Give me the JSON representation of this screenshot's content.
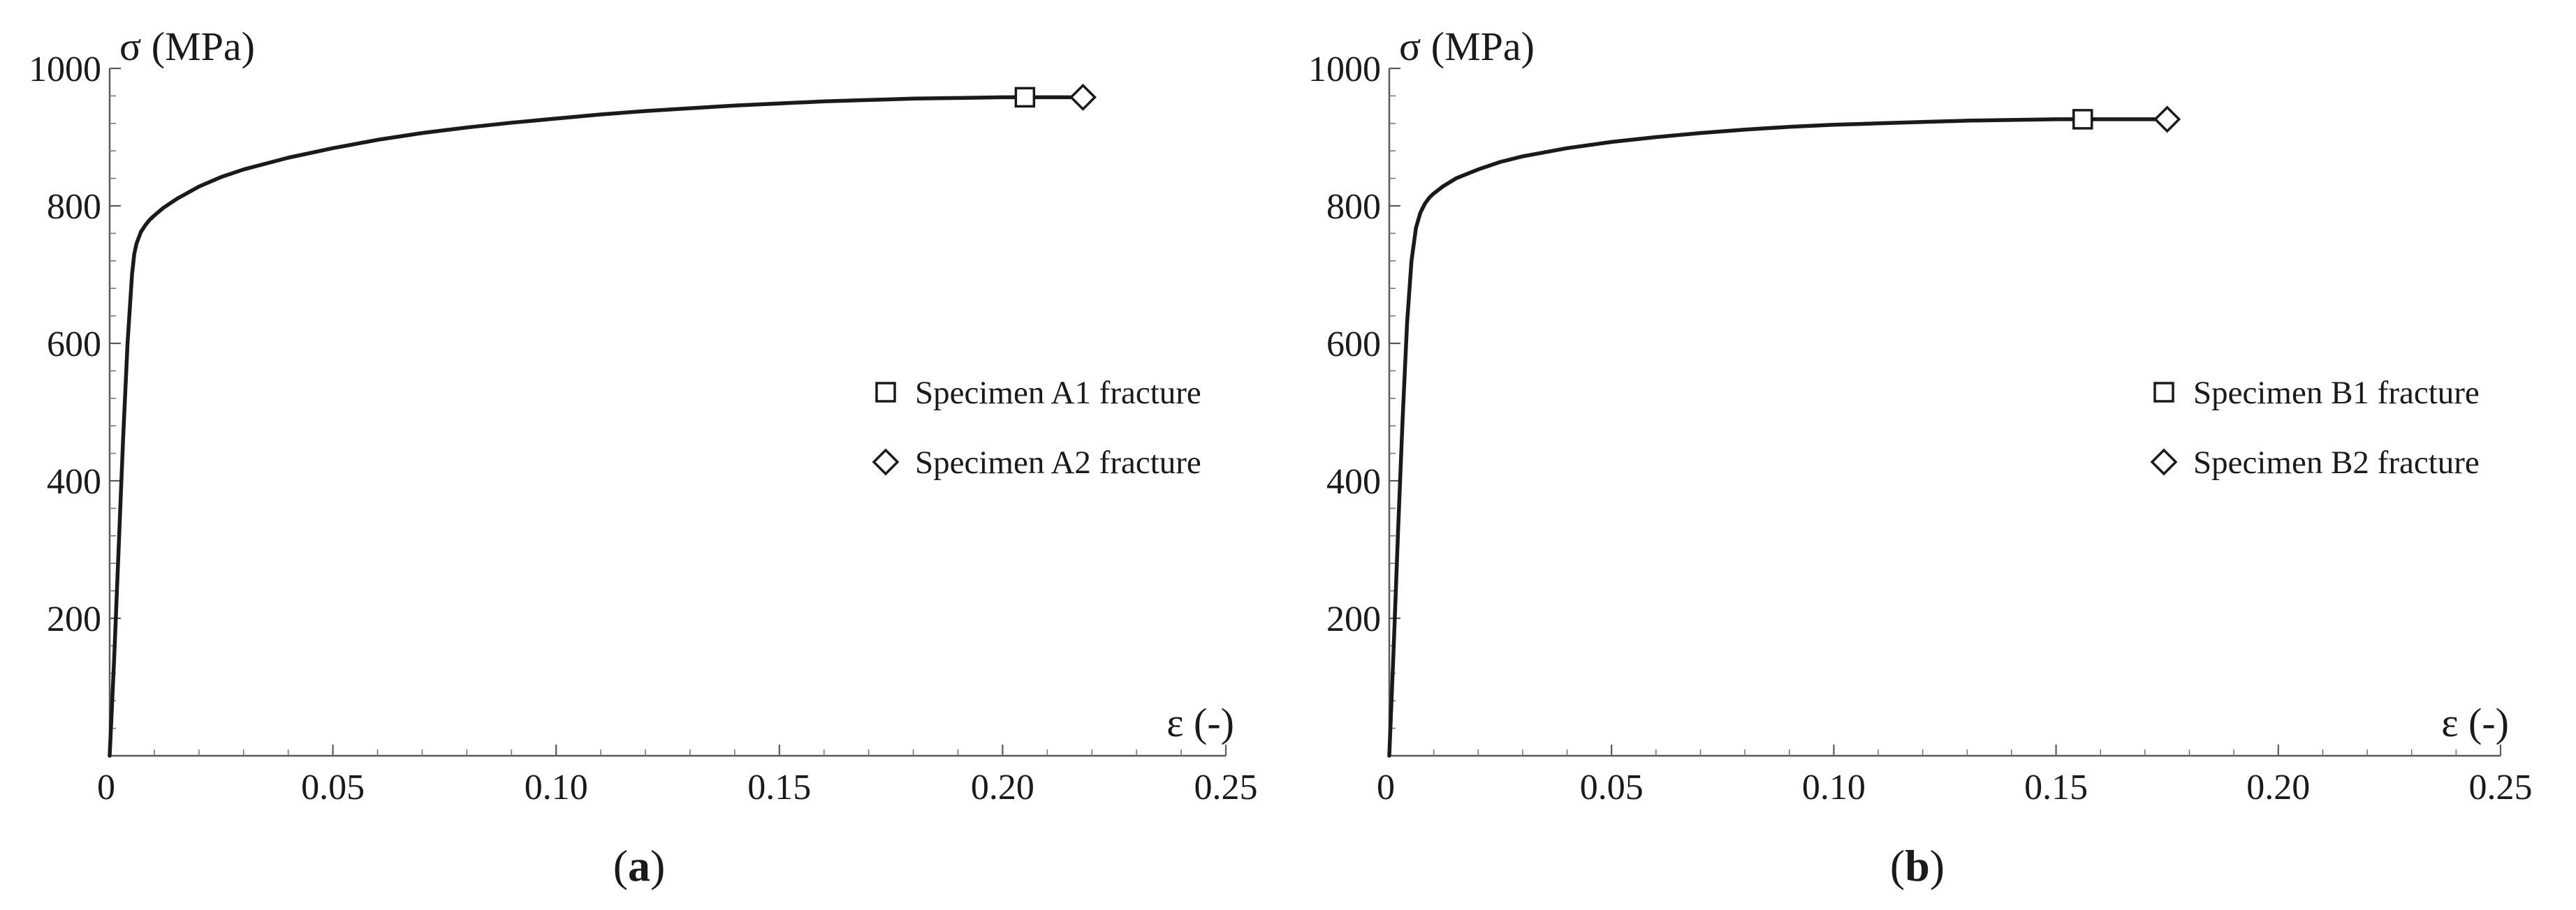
{
  "chart_data": [
    {
      "type": "line",
      "panel_label_text": "a",
      "xlabel": "ε (-)",
      "ylabel": "σ (MPa)",
      "xlim": [
        0,
        0.25
      ],
      "ylim": [
        0,
        1000
      ],
      "x_ticks": [
        0,
        0.05,
        0.1,
        0.15,
        0.2,
        0.25
      ],
      "x_tick_labels": [
        "0",
        "0.05",
        "0.10",
        "0.15",
        "0.20",
        "0.25"
      ],
      "y_ticks": [
        200,
        400,
        600,
        800,
        1000
      ],
      "y_tick_labels": [
        "200",
        "400",
        "600",
        "800",
        "1000"
      ],
      "grid": false,
      "legend_position": "right-middle",
      "series": [
        {
          "x": [
            0,
            0.001,
            0.002,
            0.003,
            0.004,
            0.005,
            0.0055,
            0.006,
            0.007,
            0.008,
            0.009,
            0.01,
            0.012,
            0.015,
            0.02,
            0.025,
            0.03,
            0.04,
            0.05,
            0.06,
            0.07,
            0.08,
            0.09,
            0.1,
            0.11,
            0.12,
            0.13,
            0.14,
            0.15,
            0.16,
            0.17,
            0.18,
            0.19,
            0.2,
            0.205,
            0.21,
            0.215,
            0.218
          ],
          "y": [
            0,
            140,
            300,
            460,
            600,
            700,
            730,
            745,
            762,
            772,
            780,
            786,
            797,
            810,
            828,
            842,
            853,
            870,
            884,
            896,
            906,
            914,
            921,
            927,
            933,
            938,
            942,
            946,
            949,
            952,
            954,
            956,
            957,
            958,
            958,
            958,
            958,
            958
          ]
        }
      ],
      "markers": [
        {
          "shape": "square",
          "label": "Specimen A1 fracture",
          "x": 0.205,
          "y": 958
        },
        {
          "shape": "diamond",
          "label": "Specimen A2 fracture",
          "x": 0.218,
          "y": 958
        }
      ]
    },
    {
      "type": "line",
      "panel_label_text": "b",
      "xlabel": "ε (-)",
      "ylabel": "σ (MPa)",
      "xlim": [
        0,
        0.25
      ],
      "ylim": [
        0,
        1000
      ],
      "x_ticks": [
        0,
        0.05,
        0.1,
        0.15,
        0.2,
        0.25
      ],
      "x_tick_labels": [
        "0",
        "0.05",
        "0.10",
        "0.15",
        "0.20",
        "0.25"
      ],
      "y_ticks": [
        200,
        400,
        600,
        800,
        1000
      ],
      "y_tick_labels": [
        "200",
        "400",
        "600",
        "800",
        "1000"
      ],
      "grid": false,
      "legend_position": "right-middle",
      "series": [
        {
          "x": [
            0,
            0.001,
            0.002,
            0.003,
            0.004,
            0.005,
            0.006,
            0.007,
            0.008,
            0.009,
            0.01,
            0.012,
            0.015,
            0.02,
            0.025,
            0.03,
            0.04,
            0.05,
            0.06,
            0.07,
            0.08,
            0.09,
            0.1,
            0.11,
            0.12,
            0.13,
            0.14,
            0.15,
            0.156,
            0.16,
            0.165,
            0.17,
            0.175
          ],
          "y": [
            0,
            160,
            330,
            490,
            630,
            720,
            768,
            790,
            803,
            812,
            818,
            828,
            840,
            853,
            864,
            872,
            884,
            893,
            900,
            906,
            911,
            915,
            918,
            920,
            922,
            924,
            925,
            926,
            926,
            926,
            926,
            926,
            926
          ]
        }
      ],
      "markers": [
        {
          "shape": "square",
          "label": "Specimen B1 fracture",
          "x": 0.156,
          "y": 926
        },
        {
          "shape": "diamond",
          "label": "Specimen B2 fracture",
          "x": 0.175,
          "y": 926
        }
      ]
    }
  ]
}
